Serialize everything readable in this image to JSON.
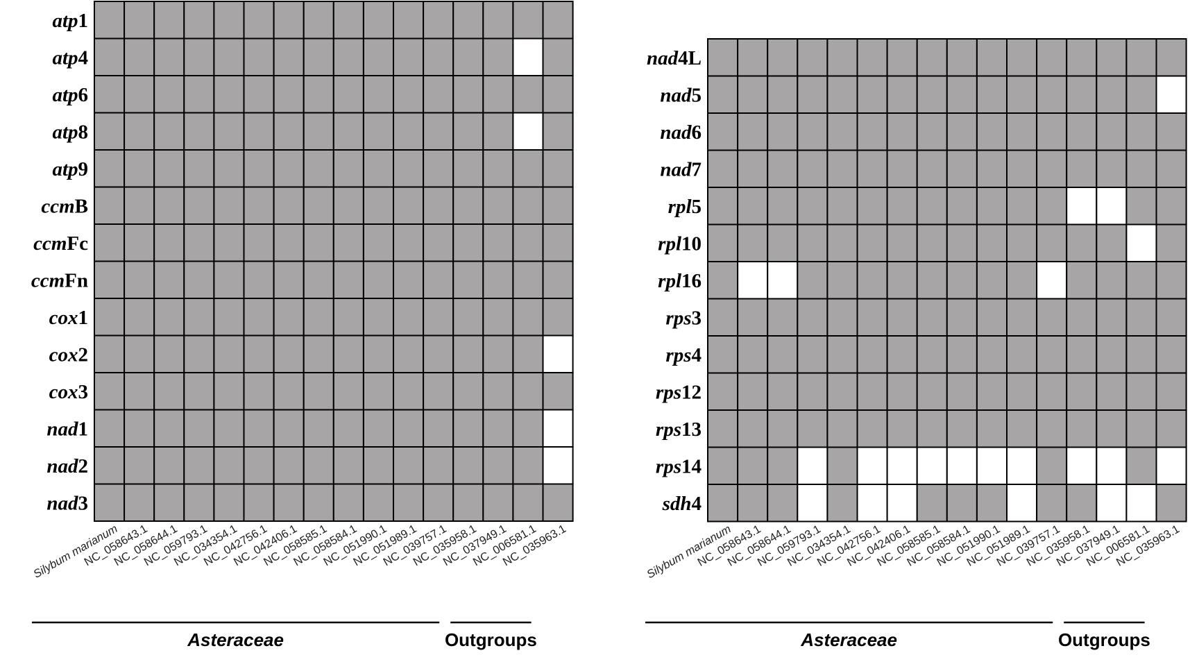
{
  "colors": {
    "present": "#a7a5a6",
    "absent": "#ffffff",
    "grid": "#000000"
  },
  "chart_data": [
    {
      "type": "heatmap",
      "legend": "none",
      "columns": [
        "Silybum marianum",
        "NC_058643.1",
        "NC_058644.1",
        "NC_059793.1",
        "NC_034354.1",
        "NC_042756.1",
        "NC_042406.1",
        "NC_058585.1",
        "NC_058584.1",
        "NC_051990.1",
        "NC_051989.1",
        "NC_039757.1",
        "NC_035958.1",
        "NC_037949.1",
        "NC_006581.1",
        "NC_035963.1"
      ],
      "groups": [
        {
          "label": "Asteraceae",
          "columns": [
            0,
            11
          ]
        },
        {
          "label": "Outgroups",
          "columns": [
            12,
            15
          ]
        }
      ],
      "rows": [
        {
          "prefix": "atp",
          "suffix": "1",
          "values": [
            1,
            1,
            1,
            1,
            1,
            1,
            1,
            1,
            1,
            1,
            1,
            1,
            1,
            1,
            1,
            1
          ]
        },
        {
          "prefix": "atp",
          "suffix": "4",
          "values": [
            1,
            1,
            1,
            1,
            1,
            1,
            1,
            1,
            1,
            1,
            1,
            1,
            1,
            1,
            0,
            1
          ]
        },
        {
          "prefix": "atp",
          "suffix": "6",
          "values": [
            1,
            1,
            1,
            1,
            1,
            1,
            1,
            1,
            1,
            1,
            1,
            1,
            1,
            1,
            1,
            1
          ]
        },
        {
          "prefix": "atp",
          "suffix": "8",
          "values": [
            1,
            1,
            1,
            1,
            1,
            1,
            1,
            1,
            1,
            1,
            1,
            1,
            1,
            1,
            0,
            1
          ]
        },
        {
          "prefix": "atp",
          "suffix": "9",
          "values": [
            1,
            1,
            1,
            1,
            1,
            1,
            1,
            1,
            1,
            1,
            1,
            1,
            1,
            1,
            1,
            1
          ]
        },
        {
          "prefix": "ccm",
          "suffix": "B",
          "values": [
            1,
            1,
            1,
            1,
            1,
            1,
            1,
            1,
            1,
            1,
            1,
            1,
            1,
            1,
            1,
            1
          ]
        },
        {
          "prefix": "ccm",
          "suffix": "Fc",
          "values": [
            1,
            1,
            1,
            1,
            1,
            1,
            1,
            1,
            1,
            1,
            1,
            1,
            1,
            1,
            1,
            1
          ]
        },
        {
          "prefix": "ccm",
          "suffix": "Fn",
          "values": [
            1,
            1,
            1,
            1,
            1,
            1,
            1,
            1,
            1,
            1,
            1,
            1,
            1,
            1,
            1,
            1
          ]
        },
        {
          "prefix": "cox",
          "suffix": "1",
          "values": [
            1,
            1,
            1,
            1,
            1,
            1,
            1,
            1,
            1,
            1,
            1,
            1,
            1,
            1,
            1,
            1
          ]
        },
        {
          "prefix": "cox",
          "suffix": "2",
          "values": [
            1,
            1,
            1,
            1,
            1,
            1,
            1,
            1,
            1,
            1,
            1,
            1,
            1,
            1,
            1,
            0
          ]
        },
        {
          "prefix": "cox",
          "suffix": "3",
          "values": [
            1,
            1,
            1,
            1,
            1,
            1,
            1,
            1,
            1,
            1,
            1,
            1,
            1,
            1,
            1,
            1
          ]
        },
        {
          "prefix": "nad",
          "suffix": "1",
          "values": [
            1,
            1,
            1,
            1,
            1,
            1,
            1,
            1,
            1,
            1,
            1,
            1,
            1,
            1,
            1,
            0
          ]
        },
        {
          "prefix": "nad",
          "suffix": "2",
          "values": [
            1,
            1,
            1,
            1,
            1,
            1,
            1,
            1,
            1,
            1,
            1,
            1,
            1,
            1,
            1,
            0
          ]
        },
        {
          "prefix": "nad",
          "suffix": "3",
          "values": [
            1,
            1,
            1,
            1,
            1,
            1,
            1,
            1,
            1,
            1,
            1,
            1,
            1,
            1,
            1,
            1
          ]
        }
      ]
    },
    {
      "type": "heatmap",
      "legend": "none",
      "columns": [
        "Silybum marianum",
        "NC_058643.1",
        "NC_058644.1",
        "NC_059793.1",
        "NC_034354.1",
        "NC_042756.1",
        "NC_042406.1",
        "NC_058585.1",
        "NC_058584.1",
        "NC_051990.1",
        "NC_051989.1",
        "NC_039757.1",
        "NC_035958.1",
        "NC_037949.1",
        "NC_006581.1",
        "NC_035963.1"
      ],
      "groups": [
        {
          "label": "Asteraceae",
          "columns": [
            0,
            11
          ]
        },
        {
          "label": "Outgroups",
          "columns": [
            12,
            15
          ]
        }
      ],
      "rows": [
        {
          "prefix": "nad",
          "suffix": "4L",
          "values": [
            1,
            1,
            1,
            1,
            1,
            1,
            1,
            1,
            1,
            1,
            1,
            1,
            1,
            1,
            1,
            1
          ]
        },
        {
          "prefix": "nad",
          "suffix": "5",
          "values": [
            1,
            1,
            1,
            1,
            1,
            1,
            1,
            1,
            1,
            1,
            1,
            1,
            1,
            1,
            1,
            0
          ]
        },
        {
          "prefix": "nad",
          "suffix": "6",
          "values": [
            1,
            1,
            1,
            1,
            1,
            1,
            1,
            1,
            1,
            1,
            1,
            1,
            1,
            1,
            1,
            1
          ]
        },
        {
          "prefix": "nad",
          "suffix": "7",
          "values": [
            1,
            1,
            1,
            1,
            1,
            1,
            1,
            1,
            1,
            1,
            1,
            1,
            1,
            1,
            1,
            1
          ]
        },
        {
          "prefix": "rpl",
          "suffix": "5",
          "values": [
            1,
            1,
            1,
            1,
            1,
            1,
            1,
            1,
            1,
            1,
            1,
            1,
            0,
            0,
            1,
            1
          ]
        },
        {
          "prefix": "rpl",
          "suffix": "10",
          "values": [
            1,
            1,
            1,
            1,
            1,
            1,
            1,
            1,
            1,
            1,
            1,
            1,
            1,
            1,
            0,
            1
          ]
        },
        {
          "prefix": "rpl",
          "suffix": "16",
          "values": [
            1,
            0,
            0,
            1,
            1,
            1,
            1,
            1,
            1,
            1,
            1,
            0,
            1,
            1,
            1,
            1
          ]
        },
        {
          "prefix": "rps",
          "suffix": "3",
          "values": [
            1,
            1,
            1,
            1,
            1,
            1,
            1,
            1,
            1,
            1,
            1,
            1,
            1,
            1,
            1,
            1
          ]
        },
        {
          "prefix": "rps",
          "suffix": "4",
          "values": [
            1,
            1,
            1,
            1,
            1,
            1,
            1,
            1,
            1,
            1,
            1,
            1,
            1,
            1,
            1,
            1
          ]
        },
        {
          "prefix": "rps",
          "suffix": "12",
          "values": [
            1,
            1,
            1,
            1,
            1,
            1,
            1,
            1,
            1,
            1,
            1,
            1,
            1,
            1,
            1,
            1
          ]
        },
        {
          "prefix": "rps",
          "suffix": "13",
          "values": [
            1,
            1,
            1,
            1,
            1,
            1,
            1,
            1,
            1,
            1,
            1,
            1,
            1,
            1,
            1,
            1
          ]
        },
        {
          "prefix": "rps",
          "suffix": "14",
          "values": [
            1,
            1,
            1,
            0,
            1,
            0,
            0,
            0,
            0,
            0,
            0,
            1,
            0,
            0,
            1,
            0
          ]
        },
        {
          "prefix": "sdh",
          "suffix": "4",
          "values": [
            1,
            1,
            1,
            0,
            1,
            0,
            0,
            1,
            1,
            1,
            0,
            1,
            1,
            0,
            0,
            1
          ]
        }
      ]
    }
  ]
}
